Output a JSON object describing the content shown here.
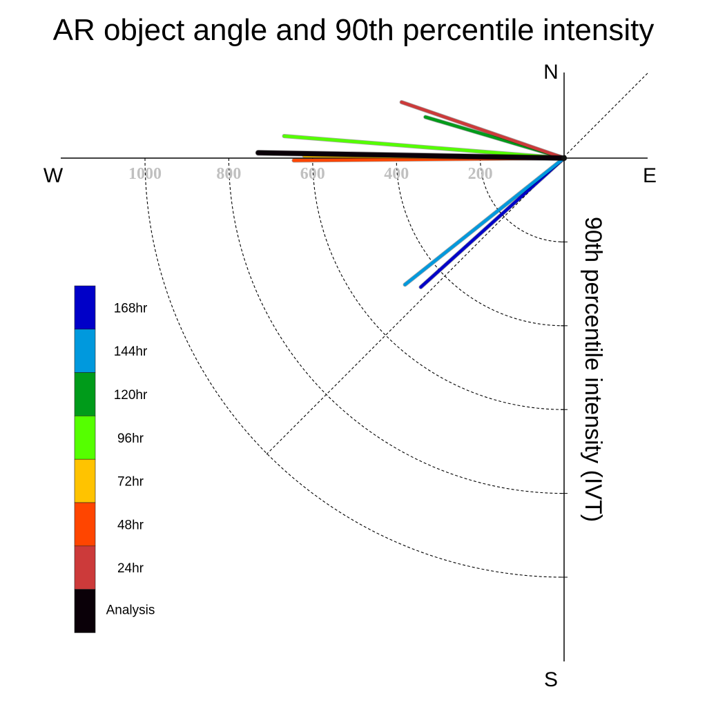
{
  "chart_data": {
    "type": "polar-vector",
    "title": "AR object angle and 90th percentile intensity",
    "radial_label": "90th percentile intensity (IVT)",
    "compass": {
      "north": "N",
      "south": "S",
      "east": "E",
      "west": "W"
    },
    "radial_ticks": [
      "1000",
      "800",
      "600",
      "400",
      "200"
    ],
    "radial_tick_values": [
      1000,
      800,
      600,
      400,
      200
    ],
    "rmax": 1200,
    "series": [
      {
        "name": "Analysis",
        "color": "#0a0008",
        "angle_deg": 179,
        "intensity": 730
      },
      {
        "name": "24hr",
        "color": "#cc3a3a",
        "angle_deg": 161,
        "intensity": 410
      },
      {
        "name": "48hr",
        "color": "#ff4500",
        "angle_deg": 180.5,
        "intensity": 645
      },
      {
        "name": "72hr",
        "color": "#ffc300",
        "angle_deg": 179.5,
        "intensity": 620
      },
      {
        "name": "96hr",
        "color": "#55ff00",
        "angle_deg": 175.5,
        "intensity": 670
      },
      {
        "name": "120hr",
        "color": "#009b1a",
        "angle_deg": 163.5,
        "intensity": 345
      },
      {
        "name": "144hr",
        "color": "#0099dd",
        "angle_deg": 218.5,
        "intensity": 485
      },
      {
        "name": "168hr",
        "color": "#0000c8",
        "angle_deg": 222,
        "intensity": 460
      }
    ]
  }
}
